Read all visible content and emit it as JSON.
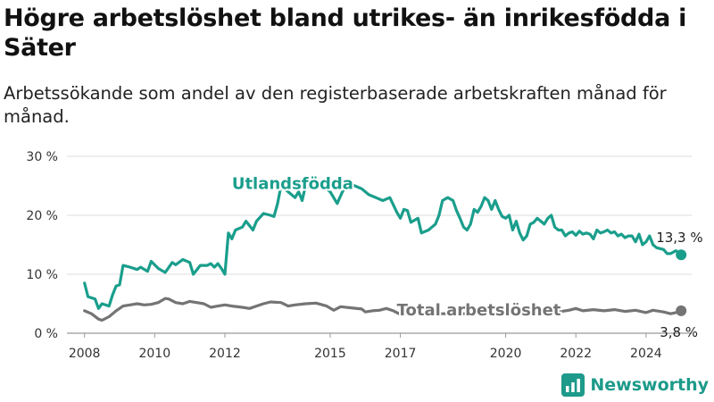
{
  "header": {
    "title": "Högre arbetslöshet bland utrikes- än inrikesfödda i Säter",
    "subtitle": "Arbetssökande som andel av den registerbaserade arbetskraften månad för månad."
  },
  "brand": {
    "name": "Newsworthy",
    "icon": "bar-chart-logo-icon",
    "color": "#1d9a8a"
  },
  "chart_data": {
    "type": "line",
    "title": "Högre arbetslöshet bland utrikes- än inrikesfödda i Säter",
    "subtitle": "Arbetssökande som andel av den registerbaserade arbetskraften månad för månad.",
    "x_ticks": [
      2008,
      2010,
      2012,
      2015,
      2017,
      2020,
      2022,
      2024
    ],
    "x_range": [
      2007.5,
      2025.3
    ],
    "ylim": [
      0,
      30
    ],
    "y_ticks": [
      0,
      10,
      20,
      30
    ],
    "y_tick_labels": [
      "0 %",
      "10 %",
      "20 %",
      "30 %"
    ],
    "grid": "horizontal",
    "series": [
      {
        "name": "Utlandsfödda",
        "color": "#1a9e8c",
        "end_label": "13,3 %",
        "points": [
          [
            2008.0,
            8.5
          ],
          [
            2008.1,
            6.2
          ],
          [
            2008.3,
            5.8
          ],
          [
            2008.4,
            4.2
          ],
          [
            2008.5,
            5.0
          ],
          [
            2008.7,
            4.6
          ],
          [
            2008.8,
            6.5
          ],
          [
            2008.9,
            8.0
          ],
          [
            2009.0,
            8.2
          ],
          [
            2009.1,
            11.5
          ],
          [
            2009.3,
            11.2
          ],
          [
            2009.5,
            10.8
          ],
          [
            2009.6,
            11.2
          ],
          [
            2009.8,
            10.5
          ],
          [
            2009.9,
            12.2
          ],
          [
            2010.1,
            11.0
          ],
          [
            2010.3,
            10.3
          ],
          [
            2010.5,
            12.0
          ],
          [
            2010.6,
            11.6
          ],
          [
            2010.8,
            12.5
          ],
          [
            2011.0,
            12.0
          ],
          [
            2011.1,
            10.0
          ],
          [
            2011.3,
            11.5
          ],
          [
            2011.5,
            11.5
          ],
          [
            2011.6,
            11.8
          ],
          [
            2011.7,
            11.2
          ],
          [
            2011.8,
            11.8
          ],
          [
            2011.9,
            11.0
          ],
          [
            2012.0,
            10.0
          ],
          [
            2012.1,
            17.0
          ],
          [
            2012.2,
            16.0
          ],
          [
            2012.3,
            17.5
          ],
          [
            2012.5,
            18.0
          ],
          [
            2012.6,
            19.0
          ],
          [
            2012.8,
            17.5
          ],
          [
            2012.9,
            19.0
          ],
          [
            2013.1,
            20.3
          ],
          [
            2013.3,
            20.0
          ],
          [
            2013.4,
            19.8
          ],
          [
            2013.5,
            22.0
          ],
          [
            2013.6,
            25.0
          ],
          [
            2013.8,
            24.0
          ],
          [
            2014.0,
            23.0
          ],
          [
            2014.1,
            24.0
          ],
          [
            2014.2,
            22.5
          ],
          [
            2014.3,
            25.0
          ],
          [
            2014.5,
            24.5
          ],
          [
            2014.6,
            26.0
          ],
          [
            2014.8,
            25.0
          ],
          [
            2015.0,
            24.0
          ],
          [
            2015.2,
            22.0
          ],
          [
            2015.35,
            24.0
          ],
          [
            2015.5,
            25.5
          ],
          [
            2015.7,
            25.0
          ],
          [
            2015.9,
            24.5
          ],
          [
            2016.1,
            23.5
          ],
          [
            2016.3,
            23.0
          ],
          [
            2016.5,
            22.5
          ],
          [
            2016.7,
            23.0
          ],
          [
            2016.9,
            20.5
          ],
          [
            2017.0,
            19.5
          ],
          [
            2017.1,
            21.0
          ],
          [
            2017.2,
            20.8
          ],
          [
            2017.3,
            18.8
          ],
          [
            2017.5,
            19.5
          ],
          [
            2017.6,
            17.0
          ],
          [
            2017.8,
            17.5
          ],
          [
            2017.9,
            18.0
          ],
          [
            2018.0,
            18.5
          ],
          [
            2018.1,
            20.0
          ],
          [
            2018.2,
            22.5
          ],
          [
            2018.35,
            23.0
          ],
          [
            2018.5,
            22.5
          ],
          [
            2018.6,
            20.8
          ],
          [
            2018.7,
            19.5
          ],
          [
            2018.8,
            18.0
          ],
          [
            2018.9,
            17.5
          ],
          [
            2019.0,
            18.5
          ],
          [
            2019.1,
            21.0
          ],
          [
            2019.2,
            20.5
          ],
          [
            2019.3,
            21.5
          ],
          [
            2019.4,
            23.0
          ],
          [
            2019.5,
            22.5
          ],
          [
            2019.6,
            21.0
          ],
          [
            2019.7,
            22.5
          ],
          [
            2019.8,
            21.0
          ],
          [
            2019.9,
            19.8
          ],
          [
            2020.0,
            19.5
          ],
          [
            2020.1,
            20.0
          ],
          [
            2020.2,
            17.5
          ],
          [
            2020.3,
            19.0
          ],
          [
            2020.4,
            17.0
          ],
          [
            2020.5,
            15.8
          ],
          [
            2020.6,
            16.5
          ],
          [
            2020.7,
            18.5
          ],
          [
            2020.8,
            18.8
          ],
          [
            2020.9,
            19.5
          ],
          [
            2021.0,
            19.0
          ],
          [
            2021.1,
            18.5
          ],
          [
            2021.2,
            19.5
          ],
          [
            2021.3,
            20.0
          ],
          [
            2021.4,
            18.0
          ],
          [
            2021.5,
            17.5
          ],
          [
            2021.6,
            17.5
          ],
          [
            2021.7,
            16.5
          ],
          [
            2021.8,
            17.0
          ],
          [
            2021.9,
            17.2
          ],
          [
            2022.0,
            16.6
          ],
          [
            2022.1,
            17.3
          ],
          [
            2022.2,
            16.8
          ],
          [
            2022.3,
            17.0
          ],
          [
            2022.4,
            16.8
          ],
          [
            2022.5,
            16.0
          ],
          [
            2022.6,
            17.5
          ],
          [
            2022.7,
            17.0
          ],
          [
            2022.8,
            17.2
          ],
          [
            2022.9,
            17.5
          ],
          [
            2023.0,
            17.0
          ],
          [
            2023.1,
            17.2
          ],
          [
            2023.2,
            16.5
          ],
          [
            2023.3,
            16.8
          ],
          [
            2023.4,
            16.2
          ],
          [
            2023.5,
            16.5
          ],
          [
            2023.6,
            16.5
          ],
          [
            2023.7,
            15.5
          ],
          [
            2023.8,
            16.8
          ],
          [
            2023.9,
            15.0
          ],
          [
            2024.0,
            15.5
          ],
          [
            2024.1,
            16.5
          ],
          [
            2024.2,
            15.0
          ],
          [
            2024.3,
            14.5
          ],
          [
            2024.5,
            14.2
          ],
          [
            2024.6,
            13.5
          ],
          [
            2024.7,
            13.5
          ],
          [
            2024.85,
            14.0
          ],
          [
            2025.0,
            13.3
          ]
        ]
      },
      {
        "name": "Total arbetslöshet",
        "color": "#747474",
        "end_label": "3,8 %",
        "points": [
          [
            2008.0,
            3.8
          ],
          [
            2008.2,
            3.3
          ],
          [
            2008.4,
            2.4
          ],
          [
            2008.5,
            2.2
          ],
          [
            2008.7,
            2.8
          ],
          [
            2008.9,
            3.8
          ],
          [
            2009.1,
            4.6
          ],
          [
            2009.3,
            4.8
          ],
          [
            2009.5,
            5.0
          ],
          [
            2009.7,
            4.8
          ],
          [
            2009.9,
            4.9
          ],
          [
            2010.1,
            5.2
          ],
          [
            2010.3,
            5.9
          ],
          [
            2010.4,
            5.8
          ],
          [
            2010.6,
            5.2
          ],
          [
            2010.8,
            5.0
          ],
          [
            2011.0,
            5.4
          ],
          [
            2011.2,
            5.2
          ],
          [
            2011.4,
            5.0
          ],
          [
            2011.6,
            4.4
          ],
          [
            2011.8,
            4.6
          ],
          [
            2012.0,
            4.8
          ],
          [
            2012.2,
            4.6
          ],
          [
            2012.5,
            4.4
          ],
          [
            2012.7,
            4.2
          ],
          [
            2012.9,
            4.6
          ],
          [
            2013.1,
            5.0
          ],
          [
            2013.3,
            5.3
          ],
          [
            2013.6,
            5.2
          ],
          [
            2013.8,
            4.6
          ],
          [
            2014.0,
            4.8
          ],
          [
            2014.3,
            5.0
          ],
          [
            2014.6,
            5.1
          ],
          [
            2014.9,
            4.6
          ],
          [
            2015.1,
            3.9
          ],
          [
            2015.3,
            4.5
          ],
          [
            2015.6,
            4.3
          ],
          [
            2015.9,
            4.1
          ],
          [
            2016.0,
            3.6
          ],
          [
            2016.2,
            3.8
          ],
          [
            2016.4,
            3.9
          ],
          [
            2016.6,
            4.2
          ],
          [
            2016.8,
            3.8
          ],
          [
            2017.0,
            3.2
          ],
          [
            2017.3,
            3.3
          ],
          [
            2017.6,
            3.4
          ],
          [
            2018.0,
            3.3
          ],
          [
            2018.5,
            3.3
          ],
          [
            2019.0,
            3.3
          ],
          [
            2019.5,
            3.4
          ],
          [
            2020.0,
            3.4
          ],
          [
            2020.5,
            3.5
          ],
          [
            2021.0,
            3.6
          ],
          [
            2021.5,
            3.6
          ],
          [
            2021.8,
            3.9
          ],
          [
            2022.0,
            4.2
          ],
          [
            2022.2,
            3.8
          ],
          [
            2022.5,
            4.0
          ],
          [
            2022.8,
            3.8
          ],
          [
            2023.1,
            4.0
          ],
          [
            2023.4,
            3.7
          ],
          [
            2023.7,
            3.9
          ],
          [
            2024.0,
            3.5
          ],
          [
            2024.2,
            3.9
          ],
          [
            2024.5,
            3.6
          ],
          [
            2024.7,
            3.3
          ],
          [
            2024.85,
            3.5
          ],
          [
            2025.0,
            3.8
          ]
        ]
      }
    ]
  }
}
